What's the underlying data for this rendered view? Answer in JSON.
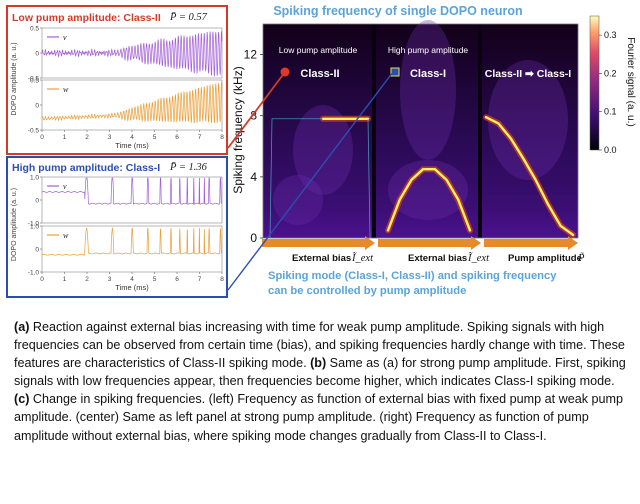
{
  "panel_a": {
    "title": "Low pump amplitude: Class-II",
    "pump_label": "P̄ = 0.57",
    "ylabel": "DOPO amplitude (a. u.)",
    "xlabel": "Time (ms)",
    "legend": [
      "v",
      "w"
    ],
    "colors": {
      "v": "#a35fd6",
      "w": "#e8a03a",
      "border": "#d43a2a",
      "title": "#d43a2a"
    }
  },
  "panel_b": {
    "title": "High pump amplitude: Class-I",
    "pump_label": "P̄ = 1.36",
    "ylabel": "DOPO amplitude (a. u.)",
    "xlabel": "Time (ms)",
    "legend": [
      "v",
      "w"
    ],
    "colors": {
      "v": "#a35fd6",
      "w": "#e8a03a",
      "border": "#2b4fb0",
      "title": "#2b4fb0"
    }
  },
  "spectrogram": {
    "title": "Spiking frequency of single DOPO neuron",
    "ylabel": "Spiking frequency (kHz)",
    "colorbar_label": "Fourier signal (a. u.)",
    "colorbar_ticks": [
      "0.3",
      "0.2",
      "0.1",
      "0.0"
    ],
    "yticks": [
      "0",
      "4",
      "8",
      "12"
    ],
    "sub_labels": [
      "Low pump amplitude",
      "High pump amplitude"
    ],
    "class_labels": [
      "Class-II",
      "Class-I",
      "Class-II ➡ Class-I"
    ],
    "arrow_labels": [
      "External bias",
      "External bias",
      "Pump amplitude"
    ],
    "arrow_math": [
      "Ĩ_ext",
      "Ĩ_ext",
      "P̃"
    ],
    "subtitle_line1": "Spiking mode (Class-I, Class-II) and spiking frequency",
    "subtitle_line2": "can be controlled by pump amplitude",
    "colors": {
      "title": "#5ba3d9",
      "arrow": "#e88a2a",
      "trace": "#eef55a"
    }
  },
  "chart_data": [
    {
      "type": "line",
      "title": "Low pump amplitude: Class-II",
      "xlabel": "Time (ms)",
      "ylabel": "DOPO amplitude (a. u.)",
      "xlim": [
        0,
        8
      ],
      "xticks": [
        "0",
        "1",
        "2",
        "3",
        "4",
        "5",
        "6",
        "7",
        "8"
      ],
      "series": [
        {
          "name": "v",
          "ylim": [
            -0.5,
            0.5
          ],
          "yticks": [
            "-0.5",
            "0",
            "0.5"
          ]
        },
        {
          "name": "w",
          "ylim": [
            -0.5,
            0.5
          ],
          "yticks": [
            "-0.5",
            "0",
            "0.5"
          ]
        }
      ]
    },
    {
      "type": "line",
      "title": "High pump amplitude: Class-I",
      "xlabel": "Time (ms)",
      "ylabel": "DOPO amplitude (a. u.)",
      "xlim": [
        0,
        8
      ],
      "xticks": [
        "0",
        "1",
        "2",
        "3",
        "4",
        "5",
        "6",
        "7",
        "8"
      ],
      "series": [
        {
          "name": "v",
          "ylim": [
            -1.0,
            1.0
          ],
          "yticks": [
            "-1.0",
            "0",
            "1.0"
          ]
        },
        {
          "name": "w",
          "ylim": [
            -1.0,
            1.0
          ],
          "yticks": [
            "-1.0",
            "0",
            "1.0"
          ]
        }
      ]
    },
    {
      "type": "heatmap",
      "title": "Spiking frequency of single DOPO neuron",
      "ylabel": "Spiking frequency (kHz)",
      "ylim": [
        0,
        14
      ],
      "colorbar_range": [
        0,
        0.35
      ],
      "panels": [
        {
          "label": "Low pump amplitude",
          "class": "Class-II",
          "frequency_khz": [
            7.8,
            7.8,
            7.8,
            7.8,
            7.8
          ]
        },
        {
          "label": "High pump amplitude",
          "class": "Class-I",
          "frequency_khz": [
            0.5,
            2.5,
            3.8,
            4.5,
            4.5,
            3.8,
            2.5,
            0.5
          ]
        },
        {
          "label": "",
          "class": "Class-II ➡ Class-I",
          "frequency_khz": [
            7.9,
            7.5,
            6.5,
            5.2,
            3.8,
            2.2,
            0.8,
            0.2
          ]
        }
      ]
    }
  ],
  "caption": {
    "a_tag": "(a)",
    "a_text": " Reaction against external bias increasing with time for weak pump amplitude. Spiking signals with high frequencies can be observed from certain time (bias), and spiking frequencies hardly change with time. These features are characteristics of Class-II spiking mode. ",
    "b_tag": "(b)",
    "b_text": " Same as (a) for strong pump amplitude. First, spiking signals with low frequencies appear, then frequencies become higher, which indicates Class-I spiking mode. ",
    "c_tag": "(c)",
    "c_text": " Change in spiking frequencies. (left) Frequency as function of external bias with fixed pump at weak pump amplitude. (center) Same as left panel at strong pump amplitude. (right) Frequency as function of pump amplitude without external bias, where spiking mode changes gradually from Class-II to Class-I."
  }
}
